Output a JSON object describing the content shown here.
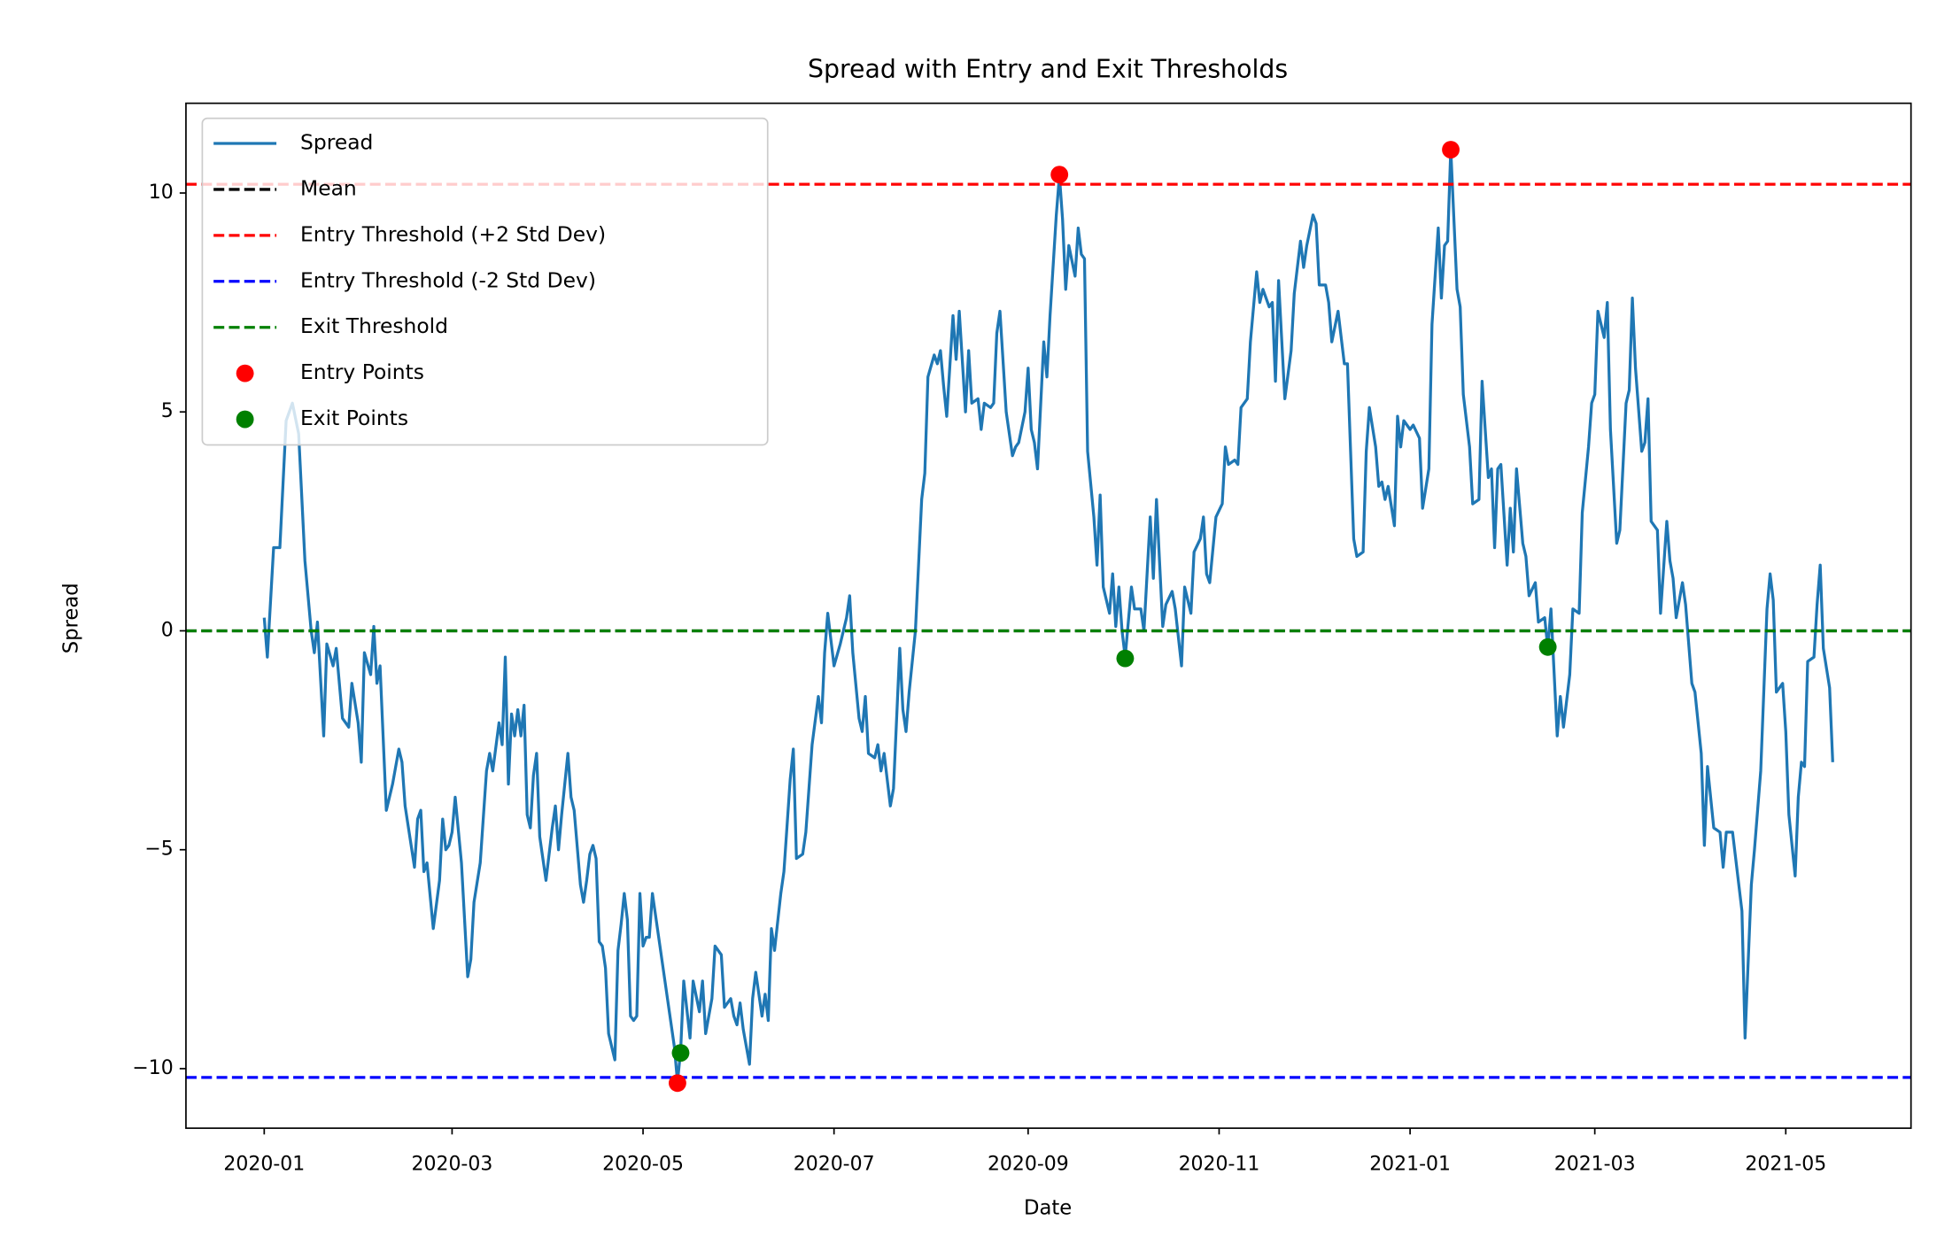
{
  "chart_data": {
    "type": "line",
    "title": "Spread with Entry and Exit Thresholds",
    "x_label": "Date",
    "y_label": "Spread",
    "xlim": [
      "2019-12-07",
      "2021-06-10"
    ],
    "xticks": [
      "2020-01",
      "2020-03",
      "2020-05",
      "2020-07",
      "2020-09",
      "2020-11",
      "2021-01",
      "2021-03",
      "2021-05"
    ],
    "ylim": [
      -11.36,
      12.05
    ],
    "yticks": [
      {
        "value": -10,
        "label": "−10"
      },
      {
        "value": -5,
        "label": "−5"
      },
      0,
      5,
      10
    ],
    "legend": "upper left",
    "series": [
      {
        "name": "Spread",
        "color": "#1f77b4",
        "x": [
          "2020-01-01",
          "2020-01-02",
          "2020-01-04",
          "2020-01-06",
          "2020-01-08",
          "2020-01-10",
          "2020-01-12",
          "2020-01-14",
          "2020-01-16",
          "2020-01-17",
          "2020-01-18",
          "2020-01-20",
          "2020-01-21",
          "2020-01-23",
          "2020-01-24",
          "2020-01-26",
          "2020-01-28",
          "2020-01-29",
          "2020-01-31",
          "2020-02-01",
          "2020-02-02",
          "2020-02-04",
          "2020-02-05",
          "2020-02-06",
          "2020-02-07",
          "2020-02-09",
          "2020-02-11",
          "2020-02-13",
          "2020-02-14",
          "2020-02-15",
          "2020-02-18",
          "2020-02-19",
          "2020-02-20",
          "2020-02-21",
          "2020-02-22",
          "2020-02-24",
          "2020-02-26",
          "2020-02-27",
          "2020-02-28",
          "2020-02-29",
          "2020-03-01",
          "2020-03-02",
          "2020-03-04",
          "2020-03-06",
          "2020-03-07",
          "2020-03-08",
          "2020-03-10",
          "2020-03-12",
          "2020-03-13",
          "2020-03-14",
          "2020-03-16",
          "2020-03-17",
          "2020-03-18",
          "2020-03-19",
          "2020-03-20",
          "2020-03-21",
          "2020-03-22",
          "2020-03-23",
          "2020-03-24",
          "2020-03-25",
          "2020-03-26",
          "2020-03-27",
          "2020-03-28",
          "2020-03-29",
          "2020-03-31",
          "2020-04-02",
          "2020-04-03",
          "2020-04-04",
          "2020-04-05",
          "2020-04-07",
          "2020-04-08",
          "2020-04-09",
          "2020-04-11",
          "2020-04-12",
          "2020-04-13",
          "2020-04-14",
          "2020-04-15",
          "2020-04-16",
          "2020-04-17",
          "2020-04-18",
          "2020-04-19",
          "2020-04-20",
          "2020-04-21",
          "2020-04-22",
          "2020-04-23",
          "2020-04-24",
          "2020-04-25",
          "2020-04-26",
          "2020-04-27",
          "2020-04-28",
          "2020-04-29",
          "2020-04-30",
          "2020-05-01",
          "2020-05-02",
          "2020-05-03",
          "2020-05-04",
          "2020-05-08",
          "2020-05-11",
          "2020-05-12",
          "2020-05-13",
          "2020-05-14",
          "2020-05-16",
          "2020-05-17",
          "2020-05-19",
          "2020-05-20",
          "2020-05-21",
          "2020-05-23",
          "2020-05-24",
          "2020-05-26",
          "2020-05-27",
          "2020-05-29",
          "2020-05-30",
          "2020-05-31",
          "2020-06-01",
          "2020-06-02",
          "2020-06-04",
          "2020-06-05",
          "2020-06-06",
          "2020-06-08",
          "2020-06-09",
          "2020-06-10",
          "2020-06-11",
          "2020-06-12",
          "2020-06-14",
          "2020-06-15",
          "2020-06-17",
          "2020-06-18",
          "2020-06-19",
          "2020-06-21",
          "2020-06-22",
          "2020-06-24",
          "2020-06-26",
          "2020-06-27",
          "2020-06-28",
          "2020-06-29",
          "2020-07-01",
          "2020-07-03",
          "2020-07-05",
          "2020-07-06",
          "2020-07-07",
          "2020-07-09",
          "2020-07-10",
          "2020-07-11",
          "2020-07-12",
          "2020-07-14",
          "2020-07-15",
          "2020-07-16",
          "2020-07-17",
          "2020-07-19",
          "2020-07-20",
          "2020-07-22",
          "2020-07-23",
          "2020-07-24",
          "2020-07-25",
          "2020-07-27",
          "2020-07-29",
          "2020-07-30",
          "2020-07-31",
          "2020-08-02",
          "2020-08-03",
          "2020-08-04",
          "2020-08-05",
          "2020-08-06",
          "2020-08-08",
          "2020-08-09",
          "2020-08-10",
          "2020-08-12",
          "2020-08-13",
          "2020-08-14",
          "2020-08-16",
          "2020-08-17",
          "2020-08-18",
          "2020-08-20",
          "2020-08-21",
          "2020-08-22",
          "2020-08-23",
          "2020-08-25",
          "2020-08-27",
          "2020-08-28",
          "2020-08-29",
          "2020-08-31",
          "2020-09-01",
          "2020-09-02",
          "2020-09-03",
          "2020-09-04",
          "2020-09-06",
          "2020-09-07",
          "2020-09-08",
          "2020-09-10",
          "2020-09-11",
          "2020-09-12",
          "2020-09-13",
          "2020-09-14",
          "2020-09-16",
          "2020-09-17",
          "2020-09-18",
          "2020-09-19",
          "2020-09-20",
          "2020-09-22",
          "2020-09-23",
          "2020-09-24",
          "2020-09-25",
          "2020-09-27",
          "2020-09-28",
          "2020-09-29",
          "2020-09-30",
          "2020-10-01",
          "2020-10-02",
          "2020-10-03",
          "2020-10-04",
          "2020-10-05",
          "2020-10-07",
          "2020-10-08",
          "2020-10-10",
          "2020-10-11",
          "2020-10-12",
          "2020-10-14",
          "2020-10-15",
          "2020-10-17",
          "2020-10-18",
          "2020-10-20",
          "2020-10-21",
          "2020-10-23",
          "2020-10-24",
          "2020-10-26",
          "2020-10-27",
          "2020-10-28",
          "2020-10-29",
          "2020-10-31",
          "2020-11-02",
          "2020-11-03",
          "2020-11-04",
          "2020-11-06",
          "2020-11-07",
          "2020-11-08",
          "2020-11-10",
          "2020-11-11",
          "2020-11-13",
          "2020-11-14",
          "2020-11-15",
          "2020-11-17",
          "2020-11-18",
          "2020-11-19",
          "2020-11-20",
          "2020-11-22",
          "2020-11-24",
          "2020-11-25",
          "2020-11-27",
          "2020-11-28",
          "2020-11-29",
          "2020-12-01",
          "2020-12-02",
          "2020-12-03",
          "2020-12-05",
          "2020-12-06",
          "2020-12-07",
          "2020-12-09",
          "2020-12-11",
          "2020-12-12",
          "2020-12-14",
          "2020-12-15",
          "2020-12-17",
          "2020-12-18",
          "2020-12-19",
          "2020-12-21",
          "2020-12-22",
          "2020-12-23",
          "2020-12-24",
          "2020-12-25",
          "2020-12-27",
          "2020-12-28",
          "2020-12-29",
          "2020-12-30",
          "2021-01-01",
          "2021-01-02",
          "2021-01-04",
          "2021-01-05",
          "2021-01-07",
          "2021-01-08",
          "2021-01-10",
          "2021-01-11",
          "2021-01-12",
          "2021-01-13",
          "2021-01-14",
          "2021-01-16",
          "2021-01-17",
          "2021-01-18",
          "2021-01-20",
          "2021-01-21",
          "2021-01-23",
          "2021-01-24",
          "2021-01-26",
          "2021-01-27",
          "2021-01-28",
          "2021-01-29",
          "2021-01-30",
          "2021-02-01",
          "2021-02-02",
          "2021-02-03",
          "2021-02-04",
          "2021-02-06",
          "2021-02-07",
          "2021-02-08",
          "2021-02-10",
          "2021-02-11",
          "2021-02-13",
          "2021-02-14",
          "2021-02-15",
          "2021-02-17",
          "2021-02-18",
          "2021-02-19",
          "2021-02-21",
          "2021-02-22",
          "2021-02-24",
          "2021-02-25",
          "2021-02-27",
          "2021-02-28",
          "2021-03-01",
          "2021-03-02",
          "2021-03-04",
          "2021-03-05",
          "2021-03-06",
          "2021-03-08",
          "2021-03-09",
          "2021-03-11",
          "2021-03-12",
          "2021-03-13",
          "2021-03-14",
          "2021-03-16",
          "2021-03-17",
          "2021-03-18",
          "2021-03-19",
          "2021-03-21",
          "2021-03-22",
          "2021-03-24",
          "2021-03-25",
          "2021-03-26",
          "2021-03-27",
          "2021-03-29",
          "2021-03-30",
          "2021-04-01",
          "2021-04-02",
          "2021-04-04",
          "2021-04-05",
          "2021-04-06",
          "2021-04-08",
          "2021-04-10",
          "2021-04-11",
          "2021-04-12",
          "2021-04-14",
          "2021-04-15",
          "2021-04-17",
          "2021-04-18",
          "2021-04-20",
          "2021-04-21",
          "2021-04-23",
          "2021-04-25",
          "2021-04-26",
          "2021-04-27",
          "2021-04-28",
          "2021-04-30",
          "2021-05-01",
          "2021-05-02",
          "2021-05-04",
          "2021-05-05",
          "2021-05-06",
          "2021-05-07",
          "2021-05-08",
          "2021-05-10",
          "2021-05-11",
          "2021-05-12",
          "2021-05-13",
          "2021-05-15",
          "2021-05-16"
        ],
        "values": [
          0.3,
          -0.6,
          1.9,
          1.9,
          4.8,
          5.2,
          4.5,
          1.6,
          0.0,
          -0.5,
          0.2,
          -2.4,
          -0.3,
          -0.8,
          -0.4,
          -2.0,
          -2.2,
          -1.2,
          -2.1,
          -3.0,
          -0.5,
          -1.0,
          0.1,
          -1.2,
          -0.8,
          -4.1,
          -3.5,
          -2.7,
          -3.0,
          -4.0,
          -5.4,
          -4.3,
          -4.1,
          -5.5,
          -5.3,
          -6.8,
          -5.7,
          -4.3,
          -5.0,
          -4.9,
          -4.6,
          -3.8,
          -5.3,
          -7.9,
          -7.5,
          -6.2,
          -5.3,
          -3.2,
          -2.8,
          -3.2,
          -2.1,
          -2.6,
          -0.6,
          -3.5,
          -1.9,
          -2.4,
          -1.8,
          -2.4,
          -1.7,
          -4.2,
          -4.5,
          -3.3,
          -2.8,
          -4.7,
          -5.7,
          -4.5,
          -4.0,
          -5.0,
          -4.2,
          -2.8,
          -3.8,
          -4.1,
          -5.8,
          -6.2,
          -5.7,
          -5.1,
          -4.9,
          -5.2,
          -7.1,
          -7.2,
          -7.7,
          -9.2,
          -9.5,
          -9.8,
          -7.3,
          -6.7,
          -6.0,
          -6.6,
          -8.8,
          -8.9,
          -8.8,
          -6.0,
          -7.2,
          -7.0,
          -7.0,
          -6.0,
          -8.0,
          -9.5,
          -10.3,
          -9.6,
          -8.0,
          -9.3,
          -8.0,
          -8.7,
          -8.0,
          -9.2,
          -8.4,
          -7.2,
          -7.4,
          -8.6,
          -8.4,
          -8.8,
          -9.0,
          -8.5,
          -9.1,
          -9.9,
          -8.4,
          -7.8,
          -8.8,
          -8.3,
          -8.9,
          -6.8,
          -7.3,
          -6.0,
          -5.5,
          -3.4,
          -2.7,
          -5.2,
          -5.1,
          -4.6,
          -2.6,
          -1.5,
          -2.1,
          -0.5,
          0.4,
          -0.8,
          -0.3,
          0.3,
          0.8,
          -0.5,
          -2.0,
          -2.3,
          -1.5,
          -2.8,
          -2.9,
          -2.6,
          -3.2,
          -2.8,
          -4.0,
          -3.6,
          -0.4,
          -1.8,
          -2.3,
          -1.4,
          0.0,
          3.0,
          3.6,
          5.8,
          6.3,
          6.1,
          6.4,
          5.6,
          4.9,
          7.2,
          6.2,
          7.3,
          5.0,
          6.4,
          5.2,
          5.3,
          4.6,
          5.2,
          5.1,
          5.2,
          6.8,
          7.3,
          5.0,
          4.0,
          4.2,
          4.3,
          5.0,
          6.0,
          4.6,
          4.3,
          3.7,
          6.6,
          5.8,
          7.2,
          9.5,
          10.4,
          9.4,
          7.8,
          8.8,
          8.1,
          9.2,
          8.6,
          8.5,
          4.1,
          2.6,
          1.5,
          3.1,
          1.0,
          0.4,
          1.3,
          0.1,
          1.0,
          0.0,
          -0.6,
          0.2,
          1.0,
          0.5,
          0.5,
          0.0,
          2.6,
          1.2,
          3.0,
          0.1,
          0.6,
          0.9,
          0.5,
          -0.8,
          1.0,
          0.4,
          1.8,
          2.1,
          2.6,
          1.3,
          1.1,
          2.6,
          2.9,
          4.2,
          3.8,
          3.9,
          3.8,
          5.1,
          5.3,
          6.6,
          8.2,
          7.5,
          7.8,
          7.4,
          7.5,
          5.7,
          8.0,
          5.3,
          6.4,
          7.7,
          8.9,
          8.3,
          8.8,
          9.5,
          9.3,
          7.9,
          7.9,
          7.5,
          6.6,
          7.3,
          6.1,
          6.1,
          2.1,
          1.7,
          1.8,
          4.1,
          5.1,
          4.2,
          3.3,
          3.4,
          3.0,
          3.3,
          2.4,
          4.9,
          4.2,
          4.8,
          4.6,
          4.7,
          4.4,
          2.8,
          3.7,
          7.0,
          9.2,
          7.6,
          8.8,
          8.9,
          11.0,
          7.8,
          7.4,
          5.4,
          4.2,
          2.9,
          3.0,
          5.7,
          3.5,
          3.7,
          1.9,
          3.7,
          3.8,
          1.5,
          2.8,
          1.8,
          3.7,
          2.0,
          1.7,
          0.8,
          1.1,
          0.2,
          0.3,
          -0.4,
          0.5,
          -2.4,
          -1.5,
          -2.2,
          -1.0,
          0.5,
          0.4,
          2.7,
          4.2,
          5.2,
          5.4,
          7.3,
          6.7,
          7.5,
          4.6,
          2.0,
          2.3,
          5.2,
          5.5,
          7.6,
          6.0,
          4.1,
          4.3,
          5.3,
          2.5,
          2.3,
          0.4,
          2.5,
          1.6,
          1.2,
          0.3,
          1.1,
          0.6,
          -1.2,
          -1.4,
          -2.8,
          -4.9,
          -3.1,
          -4.5,
          -4.6,
          -5.4,
          -4.6,
          -4.6,
          -5.2,
          -6.4,
          -9.3,
          -5.8,
          -5.0,
          -3.2,
          0.5,
          1.3,
          0.7,
          -1.4,
          -1.2,
          -2.3,
          -4.2,
          -5.6,
          -3.8,
          -3.0,
          -3.1,
          -0.7,
          -0.6,
          0.6,
          1.5,
          -0.4,
          -1.3,
          -3.0
        ]
      }
    ],
    "thresholds": [
      {
        "name": "Mean",
        "color": "black",
        "value": 0
      },
      {
        "name": "Entry Threshold (+2 Std Dev)",
        "color": "red",
        "value": 10.2
      },
      {
        "name": "Entry Threshold (-2 Std Dev)",
        "color": "blue",
        "value": -10.2
      },
      {
        "name": "Exit Threshold",
        "color": "green",
        "value": 0
      }
    ],
    "points": [
      {
        "name": "Entry Points",
        "color": "red",
        "x": [
          "2020-05-12",
          "2020-09-11",
          "2021-01-14"
        ],
        "values": [
          -10.33,
          10.42,
          10.99
        ]
      },
      {
        "name": "Exit Points",
        "color": "green",
        "x": [
          "2020-05-13",
          "2020-10-02",
          "2021-02-14"
        ],
        "values": [
          -9.64,
          -0.63,
          -0.37
        ]
      }
    ]
  }
}
